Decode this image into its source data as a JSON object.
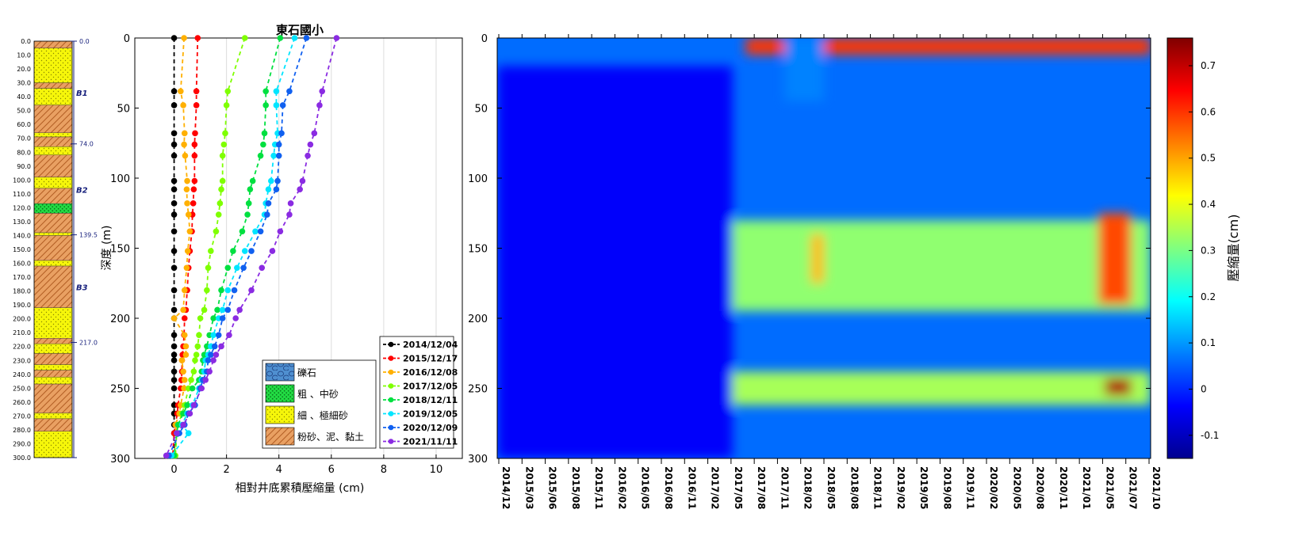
{
  "chart_data": [
    {
      "type": "table",
      "name": "strata_column",
      "depth_ticks": [
        "0.0",
        "10.0",
        "20.0",
        "30.0",
        "40.0",
        "50.0",
        "60.0",
        "70.0",
        "80.0",
        "90.0",
        "100.0",
        "110.0",
        "120.0",
        "130.0",
        "140.0",
        "150.0",
        "160.0",
        "170.0",
        "180.0",
        "190.0",
        "200.0",
        "210.0",
        "220.0",
        "230.0",
        "240.0",
        "250.0",
        "260.0",
        "270.0",
        "280.0",
        "290.0",
        "300.0"
      ],
      "layers": [
        {
          "top": 0,
          "bottom": 5,
          "type": "silt_clay"
        },
        {
          "top": 5,
          "bottom": 30,
          "type": "fine_sand"
        },
        {
          "top": 30,
          "bottom": 34,
          "type": "silt_clay"
        },
        {
          "top": 34,
          "bottom": 46,
          "type": "fine_sand"
        },
        {
          "top": 46,
          "bottom": 66,
          "type": "silt_clay"
        },
        {
          "top": 66,
          "bottom": 69,
          "type": "fine_sand"
        },
        {
          "top": 69,
          "bottom": 76,
          "type": "silt_clay"
        },
        {
          "top": 76,
          "bottom": 82,
          "type": "fine_sand"
        },
        {
          "top": 82,
          "bottom": 98,
          "type": "silt_clay"
        },
        {
          "top": 98,
          "bottom": 106,
          "type": "fine_sand"
        },
        {
          "top": 106,
          "bottom": 117,
          "type": "silt_clay"
        },
        {
          "top": 117,
          "bottom": 124,
          "type": "coarse_sand"
        },
        {
          "top": 124,
          "bottom": 138,
          "type": "silt_clay"
        },
        {
          "top": 138,
          "bottom": 140,
          "type": "fine_sand"
        },
        {
          "top": 140,
          "bottom": 158,
          "type": "silt_clay"
        },
        {
          "top": 158,
          "bottom": 162,
          "type": "fine_sand"
        },
        {
          "top": 162,
          "bottom": 192,
          "type": "silt_clay"
        },
        {
          "top": 192,
          "bottom": 214,
          "type": "fine_sand"
        },
        {
          "top": 214,
          "bottom": 218,
          "type": "silt_clay"
        },
        {
          "top": 218,
          "bottom": 225,
          "type": "fine_sand"
        },
        {
          "top": 225,
          "bottom": 233,
          "type": "silt_clay"
        },
        {
          "top": 233,
          "bottom": 237,
          "type": "fine_sand"
        },
        {
          "top": 237,
          "bottom": 242,
          "type": "silt_clay"
        },
        {
          "top": 242,
          "bottom": 247,
          "type": "fine_sand"
        },
        {
          "top": 247,
          "bottom": 268,
          "type": "silt_clay"
        },
        {
          "top": 268,
          "bottom": 272,
          "type": "fine_sand"
        },
        {
          "top": 272,
          "bottom": 281,
          "type": "silt_clay"
        },
        {
          "top": 281,
          "bottom": 300,
          "type": "fine_sand"
        }
      ],
      "boundary_labels": [
        {
          "depth": 0,
          "label": "0.0"
        },
        {
          "depth": 74,
          "label": "74.0"
        },
        {
          "depth": 139.5,
          "label": "139.5"
        },
        {
          "depth": 217,
          "label": "217.0"
        }
      ],
      "aquifer_labels": [
        {
          "depth": 37,
          "label": "B1"
        },
        {
          "depth": 107,
          "label": "B2"
        },
        {
          "depth": 177,
          "label": "B3"
        }
      ],
      "colors": {
        "fine_sand": "#f6f60a",
        "silt_clay": "#e9a062",
        "coarse_sand": "#22dd44",
        "gravel": "#4f8fd0",
        "label_blue": "#1a237e"
      }
    },
    {
      "type": "line",
      "name": "depth_profile",
      "title": "東石國小",
      "xlabel": "相對井底累積壓縮量 (cm)",
      "ylabel": "深度 (m)",
      "xlim": [
        -1.5,
        11
      ],
      "ylim": [
        300,
        0
      ],
      "xticks": [
        "0",
        "2",
        "4",
        "6",
        "8",
        "10"
      ],
      "yticks": [
        "0",
        "50",
        "100",
        "150",
        "200",
        "250",
        "300"
      ],
      "grid": "vertical",
      "legend_position": "bottom-right",
      "depths": [
        0,
        38,
        48,
        68,
        76,
        84,
        102,
        108,
        118,
        126,
        138,
        152,
        164,
        180,
        194,
        200,
        212,
        220,
        226,
        230,
        238,
        244,
        250,
        262,
        268,
        276,
        282,
        298
      ],
      "series": [
        {
          "name": "2014/12/04",
          "color": "#000000",
          "values": [
            0.0,
            0.0,
            0.0,
            0.0,
            0.0,
            0.0,
            0.0,
            0.0,
            0.0,
            0.0,
            0.0,
            0.0,
            0.0,
            0.0,
            0.0,
            0.0,
            0.0,
            0.0,
            0.0,
            0.0,
            0.0,
            0.0,
            0.0,
            0.0,
            0.0,
            0.0,
            0.0,
            0.0
          ]
        },
        {
          "name": "2015/12/17",
          "color": "#ff0000",
          "values": [
            0.9,
            0.85,
            0.85,
            0.8,
            0.78,
            0.78,
            0.78,
            0.75,
            0.73,
            0.7,
            0.68,
            0.6,
            0.55,
            0.5,
            0.45,
            0.4,
            0.38,
            0.35,
            0.32,
            0.3,
            0.3,
            0.28,
            0.25,
            0.15,
            0.12,
            0.05,
            0.0,
            -0.05
          ]
        },
        {
          "name": "2016/12/08",
          "color": "#ffb000",
          "values": [
            0.38,
            0.25,
            0.35,
            0.4,
            0.38,
            0.42,
            0.5,
            0.48,
            0.5,
            0.55,
            0.6,
            0.52,
            0.48,
            0.4,
            0.35,
            0.0,
            0.4,
            0.45,
            0.45,
            0.3,
            0.35,
            0.4,
            0.38,
            0.25,
            0.2,
            0.05,
            0.1,
            0.0
          ]
        },
        {
          "name": "2017/12/05",
          "color": "#7fff00",
          "values": [
            2.7,
            2.05,
            2.0,
            1.95,
            1.9,
            1.85,
            1.85,
            1.8,
            1.75,
            1.7,
            1.6,
            1.4,
            1.3,
            1.25,
            1.15,
            1.0,
            0.95,
            0.9,
            0.85,
            0.8,
            0.75,
            0.65,
            0.55,
            0.4,
            0.3,
            0.15,
            0.1,
            0.05
          ]
        },
        {
          "name": "2018/12/11",
          "color": "#00e040",
          "values": [
            4.05,
            3.5,
            3.5,
            3.45,
            3.4,
            3.3,
            3.0,
            2.9,
            2.85,
            2.8,
            2.6,
            2.25,
            2.05,
            1.8,
            1.65,
            1.5,
            1.35,
            1.25,
            1.15,
            1.1,
            1.05,
            0.95,
            0.7,
            0.5,
            0.35,
            0.15,
            0.1,
            0.0
          ]
        },
        {
          "name": "2019/12/05",
          "color": "#00e5ff",
          "values": [
            4.6,
            3.9,
            3.9,
            3.95,
            3.85,
            3.8,
            3.7,
            3.6,
            3.5,
            3.45,
            3.1,
            2.7,
            2.4,
            2.05,
            1.85,
            1.7,
            1.5,
            1.4,
            1.3,
            1.2,
            1.15,
            1.05,
            0.95,
            0.7,
            0.5,
            0.3,
            0.55,
            -0.1
          ]
        },
        {
          "name": "2020/12/09",
          "color": "#1060f0",
          "values": [
            5.05,
            4.4,
            4.15,
            4.1,
            4.0,
            4.0,
            3.95,
            3.9,
            3.6,
            3.55,
            3.3,
            2.95,
            2.65,
            2.3,
            2.05,
            1.85,
            1.7,
            1.55,
            1.4,
            1.3,
            1.25,
            1.1,
            1.0,
            0.8,
            0.55,
            0.4,
            0.2,
            -0.2
          ]
        },
        {
          "name": "2021/11/11",
          "color": "#8a2be2",
          "values": [
            6.2,
            5.65,
            5.55,
            5.35,
            5.2,
            5.1,
            4.9,
            4.8,
            4.45,
            4.4,
            4.05,
            3.75,
            3.35,
            2.95,
            2.5,
            2.35,
            2.1,
            1.8,
            1.6,
            1.5,
            1.35,
            1.2,
            1.05,
            0.75,
            0.6,
            0.35,
            0.1,
            -0.3
          ]
        }
      ],
      "lithology_legend": [
        {
          "label": "礫石",
          "type": "gravel"
        },
        {
          "label": "粗 、中砂",
          "type": "coarse_sand"
        },
        {
          "label": "細 、極細砂",
          "type": "fine_sand"
        },
        {
          "label": "粉砂、泥、黏土",
          "type": "silt_clay"
        }
      ]
    },
    {
      "type": "heatmap",
      "name": "compaction_time_depth",
      "ylabel": "",
      "colorbar_label": "壓縮量(cm)",
      "colorbar_ticks": [
        "0.7",
        "0.6",
        "0.5",
        "0.4",
        "0.3",
        "0.2",
        "0.1",
        "0",
        "-0.1"
      ],
      "zlim": [
        -0.15,
        0.76
      ],
      "ylim": [
        300,
        0
      ],
      "yticks": [
        "0",
        "50",
        "100",
        "150",
        "200",
        "250",
        "300"
      ],
      "x_tick_labels": [
        "2014/12",
        "2015/03",
        "2015/06",
        "2015/08",
        "2015/11",
        "2016/02",
        "2016/05",
        "2016/08",
        "2016/11",
        "2017/02",
        "2017/05",
        "2017/08",
        "2017/11",
        "2018/02",
        "2018/05",
        "2018/08",
        "2018/11",
        "2019/02",
        "2019/05",
        "2019/08",
        "2019/11",
        "2020/02",
        "2020/05",
        "2020/08",
        "2020/11",
        "2021/01",
        "2021/05",
        "2021/07",
        "2021/10"
      ],
      "colormap": "jet",
      "features": [
        {
          "x": [
            0.38,
            1.0
          ],
          "depth": [
            0,
            12
          ],
          "value": 0.6,
          "note": "surface band"
        },
        {
          "x": [
            0.44,
            0.5
          ],
          "depth": [
            0,
            45
          ],
          "value": 0.08
        },
        {
          "x": [
            0.36,
            1.0
          ],
          "depth": [
            130,
            195
          ],
          "value": 0.32
        },
        {
          "x": [
            0.0,
            1.0
          ],
          "depth": [
            238,
            262
          ],
          "value": 0.34
        },
        {
          "x": [
            0.92,
            0.97
          ],
          "depth": [
            125,
            190
          ],
          "value": 0.58
        },
        {
          "x": [
            0.48,
            0.5
          ],
          "depth": [
            140,
            175
          ],
          "value": 0.48
        },
        {
          "x": [
            0.93,
            0.97
          ],
          "depth": [
            243,
            255
          ],
          "value": 0.72
        },
        {
          "x": [
            0.0,
            0.36
          ],
          "depth": [
            20,
            300
          ],
          "value": -0.04
        }
      ]
    }
  ]
}
